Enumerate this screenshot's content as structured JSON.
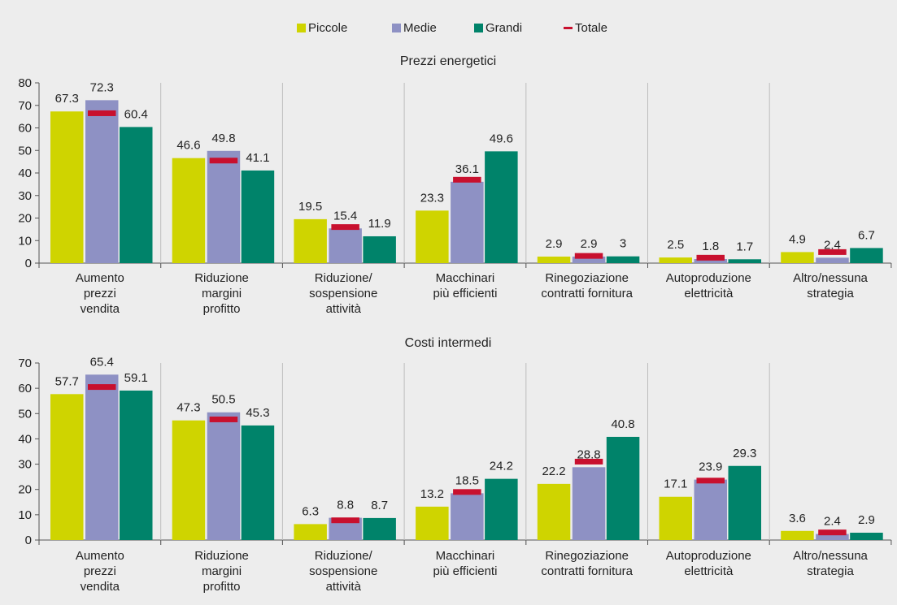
{
  "colors": {
    "background": "#ededed",
    "piccole": "#cfd400",
    "medie": "#8e91c4",
    "grandi": "#00836a",
    "totale": "#c8102e"
  },
  "legend": [
    {
      "name": "Piccole",
      "color": "#cfd400",
      "kind": "square"
    },
    {
      "name": "Medie",
      "color": "#8e91c4",
      "kind": "square"
    },
    {
      "name": "Grandi",
      "color": "#00836a",
      "kind": "square"
    },
    {
      "name": "Totale",
      "color": "#c8102e",
      "kind": "dash"
    }
  ],
  "chart_data": [
    {
      "type": "bar",
      "title": "Prezzi energetici",
      "ylim": [
        0,
        80
      ],
      "yticks": [
        0,
        10,
        20,
        30,
        40,
        50,
        60,
        70,
        80
      ],
      "grid": false,
      "legend_position": "top-center",
      "categories": [
        [
          "Aumento",
          "prezzi",
          "vendita"
        ],
        [
          "Riduzione",
          "margini",
          "profitto"
        ],
        [
          "Riduzione/",
          "sospensione",
          "attività"
        ],
        [
          "Macchinari",
          "più efficienti"
        ],
        [
          "Rinegoziazione",
          "contratti fornitura"
        ],
        [
          "Autoproduzione",
          "elettricità"
        ],
        [
          "Altro/nessuna",
          "strategia"
        ]
      ],
      "series": [
        {
          "name": "Piccole",
          "values": [
            67.3,
            46.6,
            19.5,
            23.3,
            2.9,
            2.5,
            4.9
          ]
        },
        {
          "name": "Medie",
          "values": [
            72.3,
            49.8,
            15.4,
            36.1,
            2.9,
            1.8,
            2.4
          ]
        },
        {
          "name": "Grandi",
          "values": [
            60.4,
            41.1,
            11.9,
            49.6,
            3,
            1.7,
            6.7
          ]
        },
        {
          "name": "Totale",
          "values": [
            66.5,
            45.5,
            16.0,
            37.0,
            3.2,
            2.4,
            4.9
          ]
        }
      ]
    },
    {
      "type": "bar",
      "title": "Costi intermedi",
      "ylim": [
        0,
        70
      ],
      "yticks": [
        0,
        10,
        20,
        30,
        40,
        50,
        60,
        70
      ],
      "grid": false,
      "categories": [
        [
          "Aumento",
          "prezzi",
          "vendita"
        ],
        [
          "Riduzione",
          "margini",
          "profitto"
        ],
        [
          "Riduzione/",
          "sospensione",
          "attività"
        ],
        [
          "Macchinari",
          "più efficienti"
        ],
        [
          "Rinegoziazione",
          "contratti fornitura"
        ],
        [
          "Autoproduzione",
          "elettricità"
        ],
        [
          "Altro/nessuna",
          "strategia"
        ]
      ],
      "series": [
        {
          "name": "Piccole",
          "values": [
            57.7,
            47.3,
            6.3,
            13.2,
            22.2,
            17.1,
            3.6
          ]
        },
        {
          "name": "Medie",
          "values": [
            65.4,
            50.5,
            8.8,
            18.5,
            28.8,
            23.9,
            2.4
          ]
        },
        {
          "name": "Grandi",
          "values": [
            59.1,
            45.3,
            8.7,
            24.2,
            40.8,
            29.3,
            2.9
          ]
        },
        {
          "name": "Totale",
          "values": [
            60.5,
            47.7,
            7.8,
            19.0,
            31.0,
            23.5,
            3.0
          ]
        }
      ]
    }
  ]
}
